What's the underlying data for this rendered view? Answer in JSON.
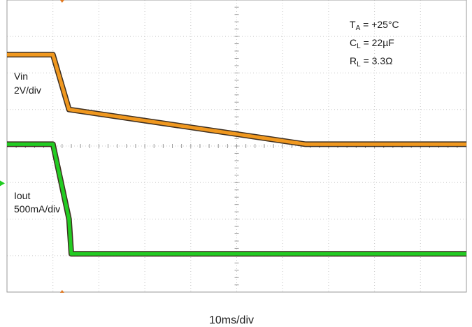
{
  "chart_data": {
    "type": "line",
    "title": "",
    "xlabel": "10ms/div",
    "ylabel": "",
    "grid": true,
    "x_unit": "div",
    "xlim": [
      0,
      10
    ],
    "ylim": [
      -4,
      4
    ],
    "annotations": {
      "ta": {
        "main": "T",
        "sub": "A",
        "rest": " = +25°C"
      },
      "cl": {
        "main": "C",
        "sub": "L",
        "rest": " = 22µF"
      },
      "rl": {
        "main": "R",
        "sub": "L",
        "rest": " = 3.3Ω"
      }
    },
    "series": [
      {
        "name": "Vin",
        "scale": "2V/div",
        "color": "#f0981f",
        "x": [
          0,
          1.0,
          1.35,
          6.5,
          10
        ],
        "y": [
          2.5,
          2.5,
          1.0,
          0.05,
          0.05
        ]
      },
      {
        "name": "Iout",
        "scale": "500mA/div",
        "color": "#22cc22",
        "x": [
          0,
          1.0,
          1.35,
          1.4,
          10
        ],
        "y": [
          0.05,
          0.05,
          -2.0,
          -2.95,
          -2.95
        ]
      }
    ]
  },
  "colors": {
    "grid": "#c8c8c8",
    "frame": "#9a9a9a",
    "trace_outline": "#2a1a0a",
    "marker": "#e07820"
  }
}
